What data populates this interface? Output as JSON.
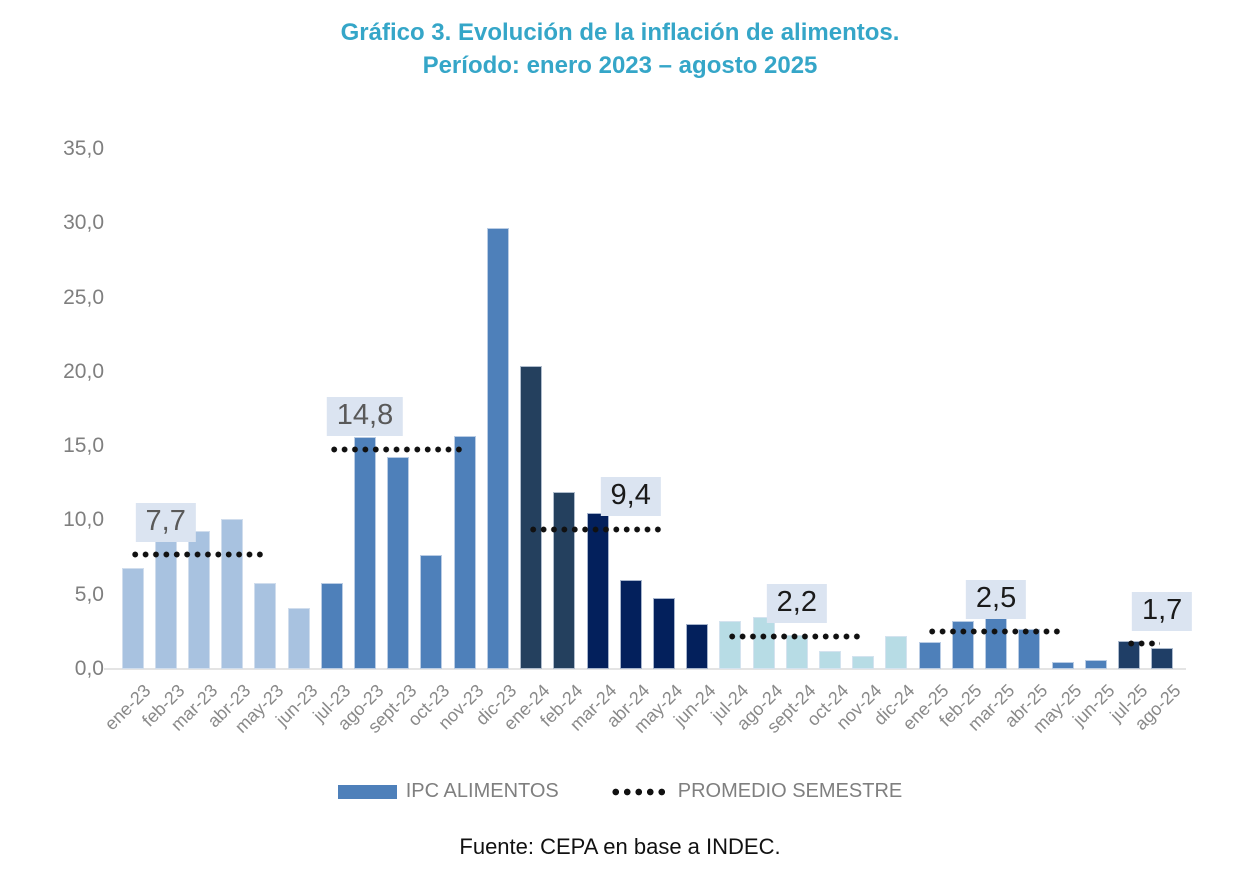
{
  "title": {
    "line1": "Gráfico 3. Evolución de la inflación de alimentos.",
    "line2": "Período: enero 2023 – agosto 2025"
  },
  "legend": {
    "items": [
      {
        "label": "IPC ALIMENTOS",
        "swatch": "bar",
        "color": "#4E80BA"
      },
      {
        "label": "PROMEDIO SEMESTRE",
        "swatch": "dotted-line",
        "color": "#111111"
      }
    ]
  },
  "footer": {
    "source": "Fuente: CEPA en base a INDEC."
  },
  "colors": {
    "title": "#35A6C8",
    "yaxis_text": "#7F7F7F",
    "xaxis_text": "#898989",
    "axis_line": "#E4E4E4",
    "avg_box_bg": "#DBE4F1",
    "dots": "#111111"
  },
  "chart_data": {
    "type": "bar",
    "title": "Gráfico 3. Evolución de la inflación de alimentos. Período: enero 2023 – agosto 2025",
    "xlabel": "",
    "ylabel": "",
    "ylim": [
      0,
      35
    ],
    "grid": false,
    "legend_position": "bottom",
    "yticks": [
      {
        "label": "0,0",
        "v": 0
      },
      {
        "label": "5,0",
        "v": 5
      },
      {
        "label": "10,0",
        "v": 10
      },
      {
        "label": "15,0",
        "v": 15
      },
      {
        "label": "20,0",
        "v": 20
      },
      {
        "label": "25,0",
        "v": 25
      },
      {
        "label": "30,0",
        "v": 30
      },
      {
        "label": "35,0",
        "v": 35
      }
    ],
    "categories": [
      "ene-23",
      "feb-23",
      "mar-23",
      "abr-23",
      "may-23",
      "jun-23",
      "jul-23",
      "ago-23",
      "sept-23",
      "oct-23",
      "nov-23",
      "dic-23",
      "ene-24",
      "feb-24",
      "mar-24",
      "abr-24",
      "may-24",
      "jun-24",
      "jul-24",
      "ago-24",
      "sept-24",
      "oct-24",
      "nov-24",
      "dic-24",
      "ene-25",
      "feb-25",
      "mar-25",
      "abr-25",
      "may-25",
      "jun-25",
      "jul-25",
      "ago-25"
    ],
    "series": [
      {
        "name": "IPC ALIMENTOS",
        "values": [
          6.8,
          9.8,
          9.3,
          10.1,
          5.8,
          4.1,
          5.8,
          15.6,
          14.3,
          7.7,
          15.7,
          29.7,
          20.4,
          11.9,
          10.5,
          6.0,
          4.8,
          3.0,
          3.2,
          3.5,
          2.3,
          1.2,
          0.9,
          2.2,
          1.8,
          3.2,
          5.9,
          2.7,
          0.5,
          0.6,
          1.9,
          1.4
        ]
      }
    ],
    "bar_palette": [
      "#A8C2E0",
      "#4E80BA",
      "#24405E",
      "#03205C",
      "#B7DCE5",
      "#4E80BA",
      "#1F3E66"
    ],
    "bar_color_index": [
      0,
      0,
      0,
      0,
      0,
      0,
      1,
      1,
      1,
      1,
      1,
      1,
      2,
      2,
      3,
      3,
      3,
      3,
      4,
      4,
      4,
      4,
      4,
      4,
      5,
      5,
      5,
      5,
      5,
      5,
      6,
      6
    ],
    "semester_averages": [
      {
        "label": "7,7",
        "value": 7.7,
        "period": "ene-23 a jun-23",
        "first_bar": 0,
        "line_pitches": 4,
        "box_over_bar": 1,
        "text_color": "#595959"
      },
      {
        "label": "14,8",
        "value": 14.8,
        "period": "jul-23 a dic-23",
        "first_bar": 6,
        "line_pitches": 4,
        "box_over_bar": 7,
        "text_color": "#595959"
      },
      {
        "label": "9,4",
        "value": 9.4,
        "period": "ene-24 a jun-24",
        "first_bar": 12,
        "line_pitches": 4,
        "box_over_bar": 15,
        "text_color": "#1A1A1A"
      },
      {
        "label": "2,2",
        "value": 2.2,
        "period": "jul-24 a dic-24",
        "first_bar": 18,
        "line_pitches": 4,
        "box_over_bar": 20,
        "text_color": "#1A1A1A"
      },
      {
        "label": "2,5",
        "value": 2.5,
        "period": "ene-25 a jun-25",
        "first_bar": 24,
        "line_pitches": 4,
        "box_over_bar": 26,
        "text_color": "#1A1A1A"
      },
      {
        "label": "1,7",
        "value": 1.7,
        "period": "jul-25 a ago-25",
        "first_bar": 30,
        "line_pitches": 1,
        "box_over_bar": 31,
        "text_color": "#1A1A1A"
      }
    ]
  }
}
